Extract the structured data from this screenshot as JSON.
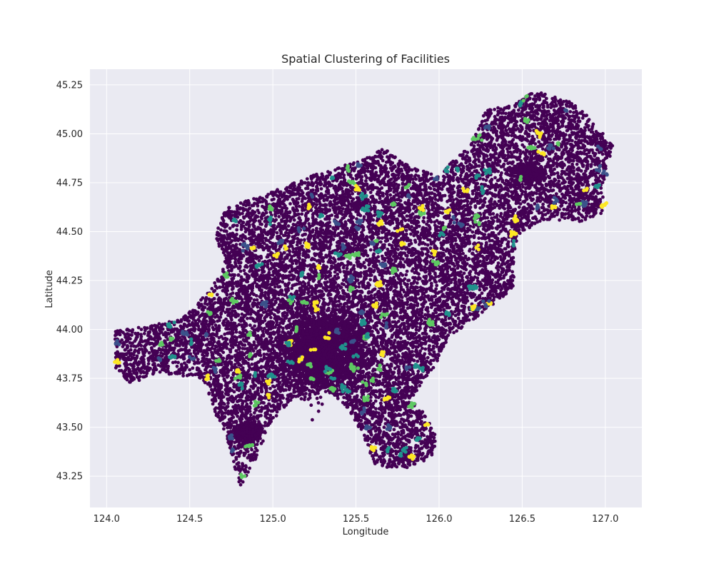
{
  "chart_data": {
    "type": "scatter",
    "title": "Spatial Clustering of Facilities",
    "xlabel": "Longitude",
    "ylabel": "Latitude",
    "xlim": [
      123.9,
      127.22
    ],
    "ylim": [
      43.09,
      45.33
    ],
    "x_ticks": [
      124.0,
      124.5,
      125.0,
      125.5,
      126.0,
      126.5,
      127.0
    ],
    "y_ticks": [
      43.25,
      43.5,
      43.75,
      44.0,
      44.25,
      44.5,
      44.75,
      45.0,
      45.25
    ],
    "x_tick_labels": [
      "124.0",
      "124.5",
      "125.0",
      "125.5",
      "126.0",
      "126.5",
      "127.0"
    ],
    "y_tick_labels": [
      "43.25",
      "43.50",
      "43.75",
      "44.00",
      "44.25",
      "44.50",
      "44.75",
      "45.00",
      "45.25"
    ],
    "grid": true,
    "background_color": "#eaeaf2",
    "colormap": "viridis",
    "cluster_colors": [
      "#440154",
      "#3b528b",
      "#21918c",
      "#5ec962",
      "#fde725"
    ],
    "dense_centers": [
      {
        "x": 125.3,
        "y": 43.88,
        "rx": 0.25,
        "ry": 0.18
      },
      {
        "x": 124.85,
        "y": 43.47,
        "rx": 0.08,
        "ry": 0.05
      },
      {
        "x": 126.55,
        "y": 44.8,
        "rx": 0.07,
        "ry": 0.05
      }
    ],
    "region_polygon": [
      [
        124.04,
        43.99
      ],
      [
        124.25,
        44.02
      ],
      [
        124.45,
        44.05
      ],
      [
        124.58,
        44.17
      ],
      [
        124.72,
        44.33
      ],
      [
        124.65,
        44.48
      ],
      [
        124.72,
        44.62
      ],
      [
        124.95,
        44.69
      ],
      [
        125.15,
        44.76
      ],
      [
        125.35,
        44.82
      ],
      [
        125.55,
        44.87
      ],
      [
        125.68,
        44.93
      ],
      [
        125.78,
        44.85
      ],
      [
        126.0,
        44.78
      ],
      [
        126.08,
        44.86
      ],
      [
        126.18,
        44.93
      ],
      [
        126.28,
        45.12
      ],
      [
        126.45,
        45.15
      ],
      [
        126.58,
        45.22
      ],
      [
        126.8,
        45.16
      ],
      [
        126.95,
        45.05
      ],
      [
        127.05,
        44.93
      ],
      [
        126.98,
        44.72
      ],
      [
        127.0,
        44.6
      ],
      [
        126.85,
        44.55
      ],
      [
        126.62,
        44.56
      ],
      [
        126.47,
        44.48
      ],
      [
        126.45,
        44.35
      ],
      [
        126.45,
        44.22
      ],
      [
        126.35,
        44.14
      ],
      [
        126.22,
        44.06
      ],
      [
        126.05,
        43.95
      ],
      [
        125.98,
        43.82
      ],
      [
        125.85,
        43.65
      ],
      [
        125.98,
        43.47
      ],
      [
        125.97,
        43.35
      ],
      [
        125.8,
        43.29
      ],
      [
        125.62,
        43.3
      ],
      [
        125.53,
        43.48
      ],
      [
        125.45,
        43.6
      ],
      [
        125.3,
        43.7
      ],
      [
        125.12,
        43.65
      ],
      [
        124.97,
        43.5
      ],
      [
        124.9,
        43.34
      ],
      [
        124.8,
        43.19
      ],
      [
        124.72,
        43.45
      ],
      [
        124.65,
        43.58
      ],
      [
        124.58,
        43.75
      ],
      [
        124.3,
        43.78
      ],
      [
        124.15,
        43.72
      ],
      [
        124.05,
        43.8
      ]
    ],
    "n_points": 14000,
    "seed": 7
  }
}
